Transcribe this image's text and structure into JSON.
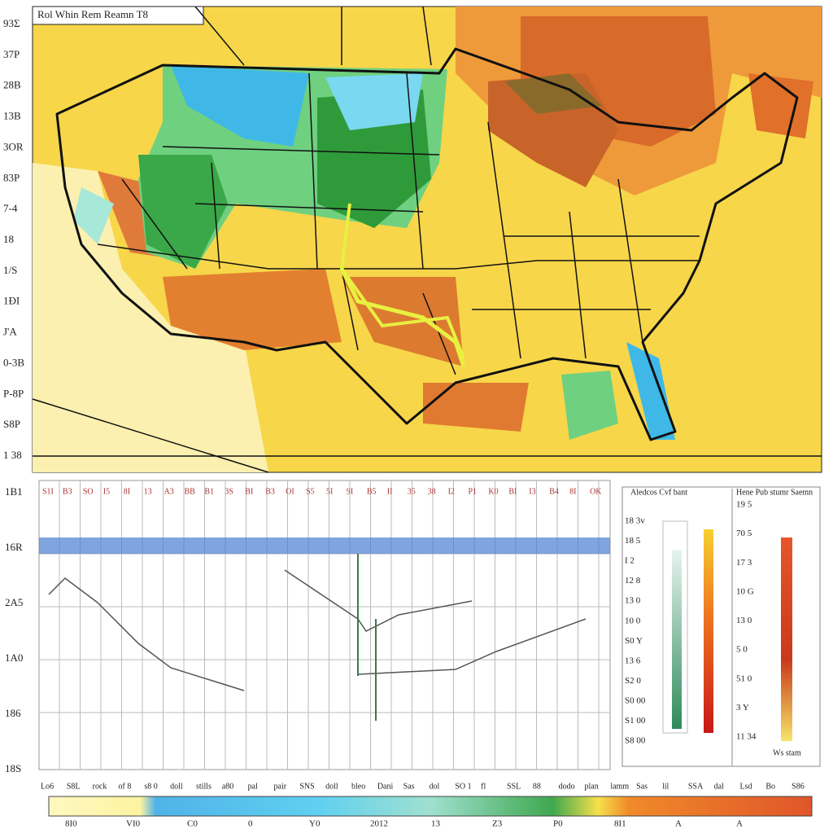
{
  "map": {
    "title": "Rol Whin Rem Reamn T8",
    "left_labels": [
      "93Σ",
      "37P",
      "28B",
      "13B",
      "3OR",
      "83P",
      "7-4",
      "18",
      "1/S",
      "1ĐI",
      "J'A",
      "0-3B",
      "P-8P",
      "S8P",
      "1 38"
    ]
  },
  "panel": {
    "left_labels": [
      "1B1",
      "16R",
      "2A5",
      "1A0",
      "186",
      "18S"
    ],
    "top_labels": [
      "S1I",
      "B3",
      "SO",
      "I5",
      "8I",
      "13",
      "A3",
      "BB",
      "B1",
      "3S",
      "BI",
      "B3",
      "OI",
      "S5",
      "5I",
      "9I",
      "B5",
      "II",
      "35",
      "38",
      "I2",
      "P1",
      "K0",
      "BI",
      "I3",
      "B4",
      "8I",
      "OK"
    ],
    "bottom_labels": [
      "Lo6",
      "S8L",
      "rock",
      "of 8",
      "s8 0",
      "doll",
      "stills",
      "a80",
      "pal",
      "pair",
      "SNS",
      "doll",
      "bleo",
      "Dani",
      "Sas",
      "dol",
      "SO 1",
      "fl",
      "SSL",
      "88",
      "dodo",
      "plan",
      "lamm",
      "Sas",
      "lil",
      "SSA",
      "dal",
      "Lsd",
      "Bo",
      "S86"
    ],
    "scale_labels": [
      "8I0",
      "VI0",
      "C0",
      "0",
      "Y0",
      "2012",
      "13",
      "Z3",
      "P0",
      "8I1",
      "A",
      "A"
    ]
  },
  "legend": {
    "title_left": "Aledcos Cvf bant",
    "title_right": "Hene Pub stumr Saemn",
    "left_labels": [
      "18 3v",
      "18 5",
      "I 2",
      "12 8",
      "13 0",
      "10 0",
      "S0 Y",
      "13 6",
      "S2 0",
      "S0 00",
      "S1 00",
      "S8 00"
    ],
    "right_labels": [
      "19 5",
      "70 5",
      "17 3",
      "10 G",
      "13 0",
      "5 0",
      "51 0",
      "3 Y",
      "11 34"
    ],
    "footer": "Ws stam"
  }
}
